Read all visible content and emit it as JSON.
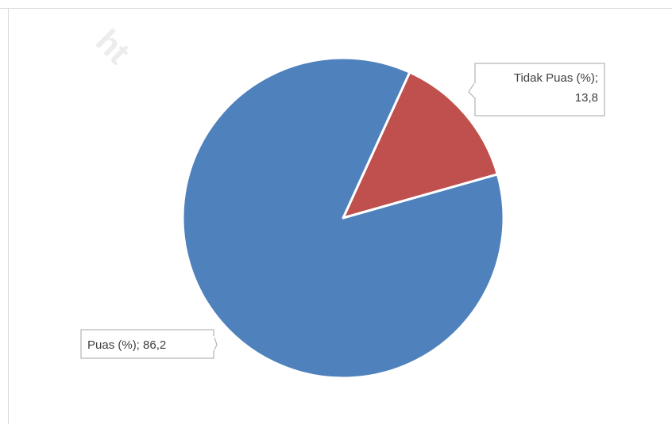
{
  "watermark": "ht",
  "chart_data": {
    "type": "pie",
    "title": "",
    "categories": [
      "Tidak Puas (%)",
      "Puas (%)"
    ],
    "values": [
      13.8,
      86.2
    ],
    "colors": [
      "#c0504d",
      "#4f81bd"
    ],
    "data_labels": [
      [
        "Tidak Puas (%);",
        "13,8"
      ],
      [
        "Puas (%); 86,2"
      ]
    ],
    "legend": "none"
  }
}
